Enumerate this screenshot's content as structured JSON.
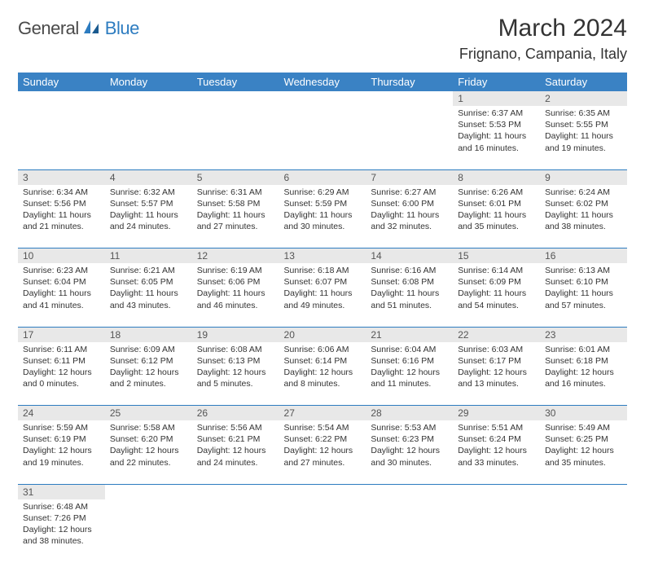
{
  "logo": {
    "text1": "General",
    "text2": "Blue"
  },
  "title": "March 2024",
  "subtitle": "Frignano, Campania, Italy",
  "colors": {
    "header_bg": "#3a82c4",
    "header_text": "#ffffff",
    "daynum_bg": "#e8e8e8",
    "row_border": "#2d7cc0",
    "logo_gray": "#4a4a4a",
    "logo_blue": "#2d7cc0"
  },
  "dayHeaders": [
    "Sunday",
    "Monday",
    "Tuesday",
    "Wednesday",
    "Thursday",
    "Friday",
    "Saturday"
  ],
  "weeks": [
    [
      null,
      null,
      null,
      null,
      null,
      {
        "n": "1",
        "sr": "6:37 AM",
        "ss": "5:53 PM",
        "dl": "11 hours and 16 minutes."
      },
      {
        "n": "2",
        "sr": "6:35 AM",
        "ss": "5:55 PM",
        "dl": "11 hours and 19 minutes."
      }
    ],
    [
      {
        "n": "3",
        "sr": "6:34 AM",
        "ss": "5:56 PM",
        "dl": "11 hours and 21 minutes."
      },
      {
        "n": "4",
        "sr": "6:32 AM",
        "ss": "5:57 PM",
        "dl": "11 hours and 24 minutes."
      },
      {
        "n": "5",
        "sr": "6:31 AM",
        "ss": "5:58 PM",
        "dl": "11 hours and 27 minutes."
      },
      {
        "n": "6",
        "sr": "6:29 AM",
        "ss": "5:59 PM",
        "dl": "11 hours and 30 minutes."
      },
      {
        "n": "7",
        "sr": "6:27 AM",
        "ss": "6:00 PM",
        "dl": "11 hours and 32 minutes."
      },
      {
        "n": "8",
        "sr": "6:26 AM",
        "ss": "6:01 PM",
        "dl": "11 hours and 35 minutes."
      },
      {
        "n": "9",
        "sr": "6:24 AM",
        "ss": "6:02 PM",
        "dl": "11 hours and 38 minutes."
      }
    ],
    [
      {
        "n": "10",
        "sr": "6:23 AM",
        "ss": "6:04 PM",
        "dl": "11 hours and 41 minutes."
      },
      {
        "n": "11",
        "sr": "6:21 AM",
        "ss": "6:05 PM",
        "dl": "11 hours and 43 minutes."
      },
      {
        "n": "12",
        "sr": "6:19 AM",
        "ss": "6:06 PM",
        "dl": "11 hours and 46 minutes."
      },
      {
        "n": "13",
        "sr": "6:18 AM",
        "ss": "6:07 PM",
        "dl": "11 hours and 49 minutes."
      },
      {
        "n": "14",
        "sr": "6:16 AM",
        "ss": "6:08 PM",
        "dl": "11 hours and 51 minutes."
      },
      {
        "n": "15",
        "sr": "6:14 AM",
        "ss": "6:09 PM",
        "dl": "11 hours and 54 minutes."
      },
      {
        "n": "16",
        "sr": "6:13 AM",
        "ss": "6:10 PM",
        "dl": "11 hours and 57 minutes."
      }
    ],
    [
      {
        "n": "17",
        "sr": "6:11 AM",
        "ss": "6:11 PM",
        "dl": "12 hours and 0 minutes."
      },
      {
        "n": "18",
        "sr": "6:09 AM",
        "ss": "6:12 PM",
        "dl": "12 hours and 2 minutes."
      },
      {
        "n": "19",
        "sr": "6:08 AM",
        "ss": "6:13 PM",
        "dl": "12 hours and 5 minutes."
      },
      {
        "n": "20",
        "sr": "6:06 AM",
        "ss": "6:14 PM",
        "dl": "12 hours and 8 minutes."
      },
      {
        "n": "21",
        "sr": "6:04 AM",
        "ss": "6:16 PM",
        "dl": "12 hours and 11 minutes."
      },
      {
        "n": "22",
        "sr": "6:03 AM",
        "ss": "6:17 PM",
        "dl": "12 hours and 13 minutes."
      },
      {
        "n": "23",
        "sr": "6:01 AM",
        "ss": "6:18 PM",
        "dl": "12 hours and 16 minutes."
      }
    ],
    [
      {
        "n": "24",
        "sr": "5:59 AM",
        "ss": "6:19 PM",
        "dl": "12 hours and 19 minutes."
      },
      {
        "n": "25",
        "sr": "5:58 AM",
        "ss": "6:20 PM",
        "dl": "12 hours and 22 minutes."
      },
      {
        "n": "26",
        "sr": "5:56 AM",
        "ss": "6:21 PM",
        "dl": "12 hours and 24 minutes."
      },
      {
        "n": "27",
        "sr": "5:54 AM",
        "ss": "6:22 PM",
        "dl": "12 hours and 27 minutes."
      },
      {
        "n": "28",
        "sr": "5:53 AM",
        "ss": "6:23 PM",
        "dl": "12 hours and 30 minutes."
      },
      {
        "n": "29",
        "sr": "5:51 AM",
        "ss": "6:24 PM",
        "dl": "12 hours and 33 minutes."
      },
      {
        "n": "30",
        "sr": "5:49 AM",
        "ss": "6:25 PM",
        "dl": "12 hours and 35 minutes."
      }
    ],
    [
      {
        "n": "31",
        "sr": "6:48 AM",
        "ss": "7:26 PM",
        "dl": "12 hours and 38 minutes."
      },
      null,
      null,
      null,
      null,
      null,
      null
    ]
  ],
  "labels": {
    "sunrise": "Sunrise:",
    "sunset": "Sunset:",
    "daylight": "Daylight:"
  }
}
